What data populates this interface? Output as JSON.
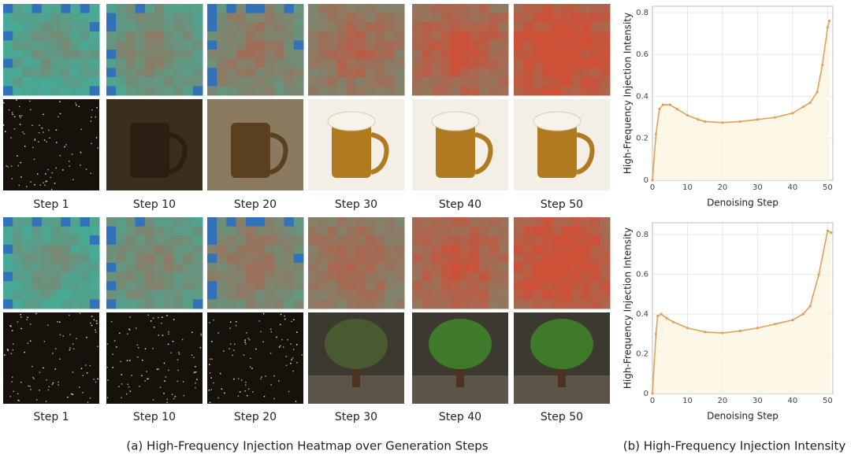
{
  "figure": {
    "step_rows": [
      [
        "Step 1",
        "Step 10",
        "Step 20",
        "Step 30",
        "Step 40",
        "Step 50"
      ],
      [
        "Step 1",
        "Step 10",
        "Step 20",
        "Step 30",
        "Step 40",
        "Step 50"
      ]
    ],
    "caption_a": "(a) High-Frequency Injection Heatmap over Generation Steps",
    "caption_b": "(b) High-Frequency Injection Intensity"
  },
  "chart_data": [
    {
      "type": "line",
      "x_label": "Denoising Step",
      "y_label": "High-Frequency Injection Intensity",
      "x": [
        0,
        1,
        2,
        3,
        5,
        7,
        10,
        13,
        15,
        20,
        25,
        30,
        35,
        40,
        43,
        45,
        47,
        48.5,
        50,
        50.5
      ],
      "series": [
        {
          "color": "#e0a05a",
          "values": [
            0,
            0.22,
            0.34,
            0.36,
            0.36,
            0.34,
            0.31,
            0.29,
            0.28,
            0.275,
            0.28,
            0.29,
            0.3,
            0.32,
            0.35,
            0.37,
            0.42,
            0.55,
            0.73,
            0.76
          ]
        }
      ],
      "xlim": [
        0,
        51.5
      ],
      "ylim": [
        0,
        0.83
      ],
      "xticks": [
        0,
        10,
        20,
        30,
        40,
        50
      ],
      "yticks": [
        0,
        0.2,
        0.4,
        0.6,
        0.8
      ],
      "grid": true
    },
    {
      "type": "line",
      "x_label": "Denoising Step",
      "y_label": "High-Frequency Injection Intensity",
      "x": [
        0,
        1,
        1.5,
        2.5,
        4,
        6,
        10,
        15,
        20,
        25,
        30,
        35,
        40,
        43,
        45,
        47.5,
        50,
        51
      ],
      "series": [
        {
          "color": "#e0a05a",
          "values": [
            0,
            0.3,
            0.39,
            0.4,
            0.38,
            0.36,
            0.33,
            0.31,
            0.305,
            0.315,
            0.33,
            0.35,
            0.37,
            0.4,
            0.44,
            0.6,
            0.82,
            0.81
          ]
        }
      ],
      "xlim": [
        0,
        51.5
      ],
      "ylim": [
        0,
        0.86
      ],
      "xticks": [
        0,
        10,
        20,
        30,
        40,
        50
      ],
      "yticks": [
        0,
        0.2,
        0.4,
        0.6,
        0.8
      ],
      "grid": true
    }
  ]
}
